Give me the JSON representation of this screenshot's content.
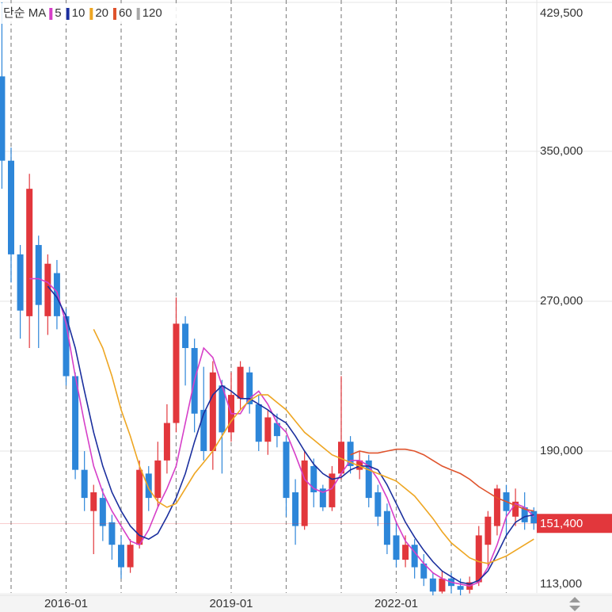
{
  "chart_data": {
    "type": "candlestick",
    "legend_title": "단순 MA",
    "x": [
      "2014-11",
      "2015-01",
      "2015-03",
      "2015-05",
      "2015-07",
      "2015-09",
      "2015-11",
      "2016-01",
      "2016-03",
      "2016-05",
      "2016-07",
      "2016-09",
      "2016-11",
      "2017-01",
      "2017-03",
      "2017-05",
      "2017-07",
      "2017-09",
      "2017-11",
      "2018-01",
      "2018-03",
      "2018-05",
      "2018-07",
      "2018-09",
      "2018-11",
      "2019-01",
      "2019-03",
      "2019-05",
      "2019-07",
      "2019-09",
      "2019-11",
      "2020-01",
      "2020-03",
      "2020-05",
      "2020-07",
      "2020-09",
      "2020-11",
      "2021-01",
      "2021-03",
      "2021-05",
      "2021-07",
      "2021-09",
      "2021-11",
      "2022-01",
      "2022-03",
      "2022-05",
      "2022-07",
      "2022-09",
      "2022-11",
      "2023-01",
      "2023-03",
      "2023-05",
      "2023-07",
      "2023-09",
      "2023-11",
      "2024-01",
      "2024-03",
      "2024-05",
      "2024-07"
    ],
    "open": [
      390000,
      345000,
      295000,
      262000,
      300000,
      262000,
      285000,
      262000,
      230000,
      180000,
      158000,
      165000,
      152000,
      140000,
      128000,
      140000,
      178000,
      165000,
      185000,
      205000,
      258000,
      245000,
      212000,
      190000,
      225000,
      200000,
      218000,
      232000,
      215000,
      195000,
      205000,
      195000,
      168000,
      150000,
      182000,
      170000,
      160000,
      178000,
      195000,
      180000,
      185000,
      168000,
      158000,
      145000,
      132000,
      140000,
      130000,
      122000,
      115000,
      122000,
      118000,
      116000,
      120000,
      140000,
      150000,
      168000,
      155000,
      160000,
      158000
    ],
    "high": [
      429500,
      352000,
      300000,
      338000,
      305000,
      295000,
      292000,
      266000,
      232000,
      190000,
      172000,
      170000,
      156000,
      145000,
      143000,
      185000,
      182000,
      195000,
      215000,
      272000,
      262000,
      250000,
      235000,
      238000,
      228000,
      232000,
      238000,
      235000,
      220000,
      212000,
      210000,
      198000,
      175000,
      190000,
      186000,
      172000,
      182000,
      230000,
      198000,
      190000,
      188000,
      172000,
      162000,
      152000,
      145000,
      143000,
      135000,
      125000,
      126000,
      125000,
      122000,
      123000,
      150000,
      158000,
      172000,
      172000,
      170000,
      168000,
      160000
    ],
    "low": [
      330000,
      280000,
      250000,
      245000,
      245000,
      252000,
      255000,
      225000,
      175000,
      158000,
      135000,
      142000,
      132000,
      122000,
      125000,
      138000,
      158000,
      160000,
      178000,
      200000,
      225000,
      200000,
      185000,
      180000,
      178000,
      195000,
      212000,
      210000,
      190000,
      188000,
      192000,
      155000,
      140000,
      148000,
      160000,
      158000,
      158000,
      175000,
      178000,
      175000,
      160000,
      150000,
      135000,
      128000,
      128000,
      122000,
      118000,
      113000,
      114000,
      114000,
      113000,
      114000,
      118000,
      128000,
      145000,
      145000,
      150000,
      148000,
      148000
    ],
    "close": [
      345000,
      295000,
      265000,
      330000,
      268000,
      290000,
      262000,
      230000,
      180000,
      165000,
      168000,
      150000,
      140000,
      128000,
      140000,
      180000,
      165000,
      185000,
      205000,
      258000,
      245000,
      210000,
      190000,
      232000,
      200000,
      220000,
      235000,
      215000,
      195000,
      208000,
      198000,
      165000,
      150000,
      185000,
      168000,
      160000,
      178000,
      195000,
      182000,
      185000,
      165000,
      155000,
      140000,
      132000,
      140000,
      128000,
      122000,
      115000,
      122000,
      118000,
      116000,
      120000,
      145000,
      155000,
      170000,
      158000,
      163000,
      152000,
      151400
    ],
    "up_color": "#e2373c",
    "down_color": "#2d86d9",
    "series": [
      {
        "name": "5",
        "color": "#d63fc8",
        "values": [
          null,
          null,
          null,
          282000,
          282000,
          280000,
          275000,
          258000,
          230000,
          205000,
          182000,
          168000,
          158000,
          150000,
          142000,
          140000,
          148000,
          160000,
          170000,
          182000,
          205000,
          228000,
          245000,
          240000,
          225000,
          210000,
          210000,
          218000,
          222000,
          215000,
          205000,
          200000,
          188000,
          175000,
          170000,
          168000,
          170000,
          178000,
          185000,
          185000,
          182000,
          175000,
          165000,
          152000,
          142000,
          136000,
          130000,
          125000,
          122000,
          120000,
          119000,
          118000,
          120000,
          128000,
          140000,
          155000,
          162000,
          160000,
          155000
        ]
      },
      {
        "name": "10",
        "color": "#1b2f9e",
        "values": [
          null,
          null,
          null,
          null,
          null,
          278000,
          272000,
          262000,
          245000,
          222000,
          200000,
          182000,
          168000,
          158000,
          150000,
          145000,
          143000,
          146000,
          155000,
          165000,
          178000,
          195000,
          210000,
          220000,
          225000,
          222000,
          218000,
          218000,
          215000,
          212000,
          208000,
          205000,
          198000,
          190000,
          183000,
          178000,
          175000,
          176000,
          180000,
          182000,
          182000,
          180000,
          172000,
          162000,
          152000,
          144000,
          137000,
          131000,
          126000,
          123000,
          120000,
          119000,
          121000,
          126000,
          135000,
          145000,
          152000,
          155000,
          156000
        ]
      },
      {
        "name": "20",
        "color": "#eea622",
        "values": [
          null,
          null,
          null,
          null,
          null,
          null,
          null,
          null,
          null,
          null,
          255000,
          245000,
          230000,
          212000,
          198000,
          182000,
          170000,
          163000,
          160000,
          162000,
          170000,
          178000,
          184000,
          190000,
          198000,
          206000,
          212000,
          217000,
          220000,
          220000,
          216000,
          212000,
          206000,
          200000,
          196000,
          192000,
          188000,
          186000,
          184000,
          182000,
          180000,
          178000,
          176000,
          174000,
          170000,
          166000,
          160000,
          154000,
          147000,
          141000,
          137000,
          133000,
          131000,
          130000,
          132000,
          134000,
          137000,
          140000,
          143000
        ]
      },
      {
        "name": "60",
        "color": "#df532c",
        "values": [
          null,
          null,
          null,
          null,
          null,
          null,
          null,
          null,
          null,
          null,
          null,
          null,
          null,
          null,
          null,
          null,
          null,
          null,
          null,
          null,
          null,
          null,
          null,
          null,
          null,
          null,
          null,
          null,
          null,
          null,
          null,
          null,
          null,
          null,
          null,
          null,
          null,
          null,
          188000,
          190000,
          189000,
          189000,
          190000,
          191000,
          191000,
          190000,
          188000,
          185000,
          182000,
          180000,
          178000,
          175000,
          171000,
          168000,
          165000,
          163000,
          161000,
          159000,
          158000
        ]
      },
      {
        "name": "120",
        "color": "#a9a9a9",
        "values": [
          null,
          null,
          null,
          null,
          null,
          null,
          null,
          null,
          null,
          null,
          null,
          null,
          null,
          null,
          null,
          null,
          null,
          null,
          null,
          null,
          null,
          null,
          null,
          null,
          null,
          null,
          null,
          null,
          null,
          null,
          null,
          null,
          null,
          null,
          null,
          null,
          null,
          null,
          null,
          null,
          null,
          null,
          null,
          null,
          null,
          null,
          null,
          null,
          null,
          null,
          null,
          null,
          null,
          null,
          null,
          null,
          null,
          null,
          null
        ]
      }
    ],
    "ylim": [
      113000,
      429500
    ],
    "yticks": [
      {
        "value": 113000,
        "label": "113,000"
      },
      {
        "value": 190000,
        "label": "190,000"
      },
      {
        "value": 270000,
        "label": "270,000"
      },
      {
        "value": 350000,
        "label": "350,000"
      },
      {
        "value": 429500,
        "label": "429,500"
      }
    ],
    "xticks": [
      {
        "value": "2015-01",
        "label": null
      },
      "2016-01",
      {
        "value": "2017-01",
        "label": null
      },
      {
        "value": "2018-01",
        "label": null
      },
      "2019-01",
      {
        "value": "2020-01",
        "label": null
      },
      {
        "value": "2021-01",
        "label": null
      },
      "2022-01",
      {
        "value": "2023-01",
        "label": null
      },
      {
        "value": "2024-01",
        "label": null
      }
    ],
    "current": {
      "value": 151400,
      "label": "151,400"
    },
    "current_color": "#e2373c"
  }
}
